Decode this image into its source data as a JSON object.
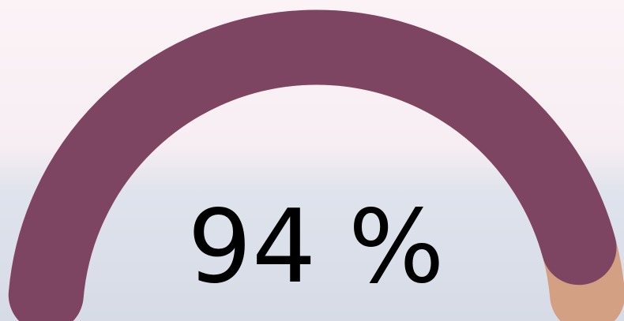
{
  "chart_data": {
    "type": "gauge",
    "values": [
      94
    ],
    "value_labels": [
      "94 %"
    ],
    "ylim": [
      0,
      100
    ],
    "color": "#7e4563",
    "track_color": "#d3a083"
  }
}
